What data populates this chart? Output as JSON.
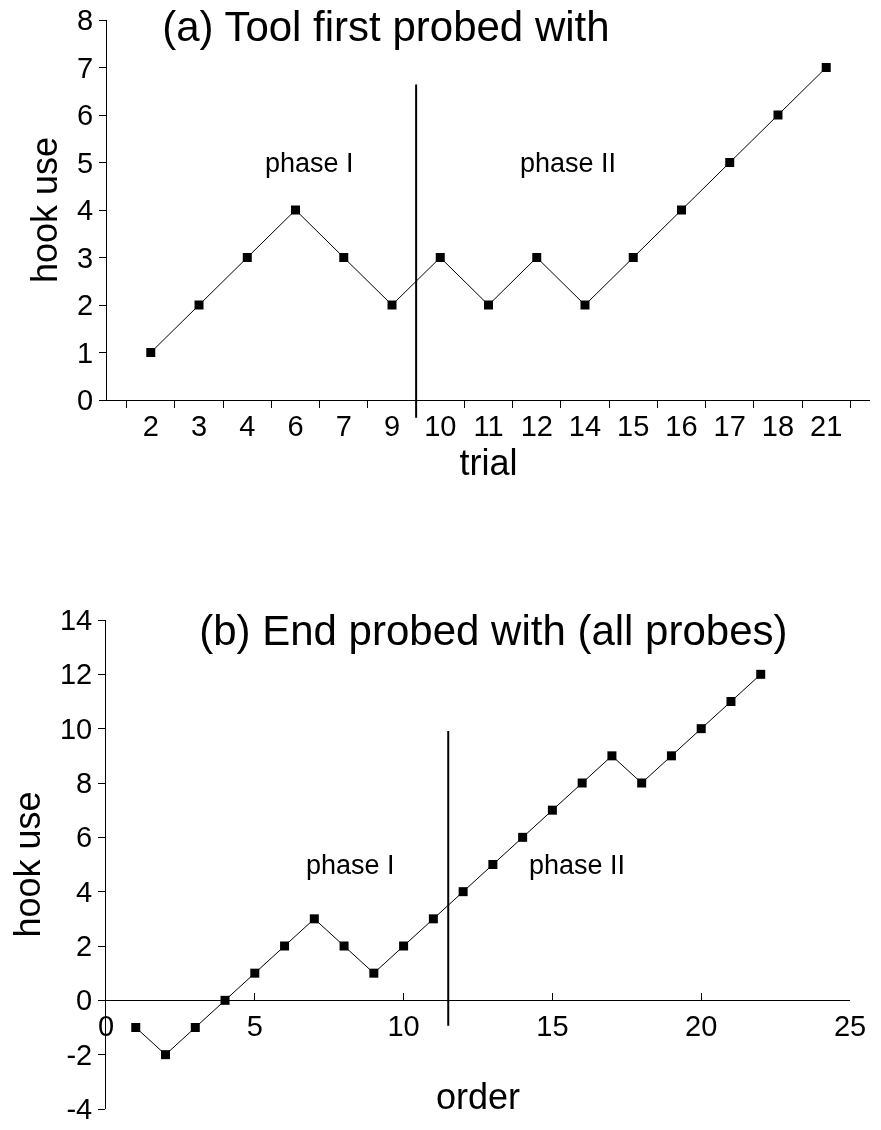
{
  "chart_data": [
    {
      "type": "line",
      "title": "(a) Tool first probed with",
      "xlabel": "trial",
      "ylabel": "hook use",
      "categories": [
        "2",
        "3",
        "4",
        "6",
        "7",
        "9",
        "10",
        "11",
        "12",
        "14",
        "15",
        "16",
        "17",
        "18",
        "21"
      ],
      "series": [
        {
          "color": "#000000",
          "values": [
            1,
            2,
            3,
            4,
            3,
            2,
            3,
            2,
            3,
            2,
            3,
            4,
            5,
            6,
            7
          ]
        }
      ],
      "ylim": [
        0,
        8
      ],
      "yticks": [
        0,
        1,
        2,
        3,
        4,
        5,
        6,
        7,
        8
      ],
      "annotations": [
        "phase I",
        "phase II"
      ],
      "marker": "square",
      "line_style": "solid",
      "grid": false
    },
    {
      "type": "line",
      "title": "(b) End probed with (all probes)",
      "xlabel": "order",
      "ylabel": "hook use",
      "x": [
        1,
        2,
        3,
        4,
        5,
        6,
        7,
        8,
        9,
        10,
        11,
        12,
        13,
        14,
        15,
        16,
        17,
        18,
        19,
        20,
        21,
        22
      ],
      "series": [
        {
          "color": "#000000",
          "values": [
            -1,
            -2,
            -1,
            0,
            1,
            2,
            3,
            2,
            1,
            2,
            3,
            4,
            5,
            6,
            7,
            8,
            9,
            8,
            9,
            10,
            11,
            12
          ]
        }
      ],
      "xlim": [
        0,
        25
      ],
      "xticks": [
        0,
        5,
        10,
        15,
        20,
        25
      ],
      "ylim": [
        -4,
        14
      ],
      "yticks": [
        -4,
        -2,
        0,
        2,
        4,
        6,
        8,
        10,
        12,
        14
      ],
      "ref_lines": [
        {
          "axis": "x",
          "value": 11.5,
          "color": "#000000"
        }
      ],
      "annotations": [
        "phase I",
        "phase II"
      ],
      "marker": "square",
      "line_style": "solid",
      "grid": false
    }
  ]
}
